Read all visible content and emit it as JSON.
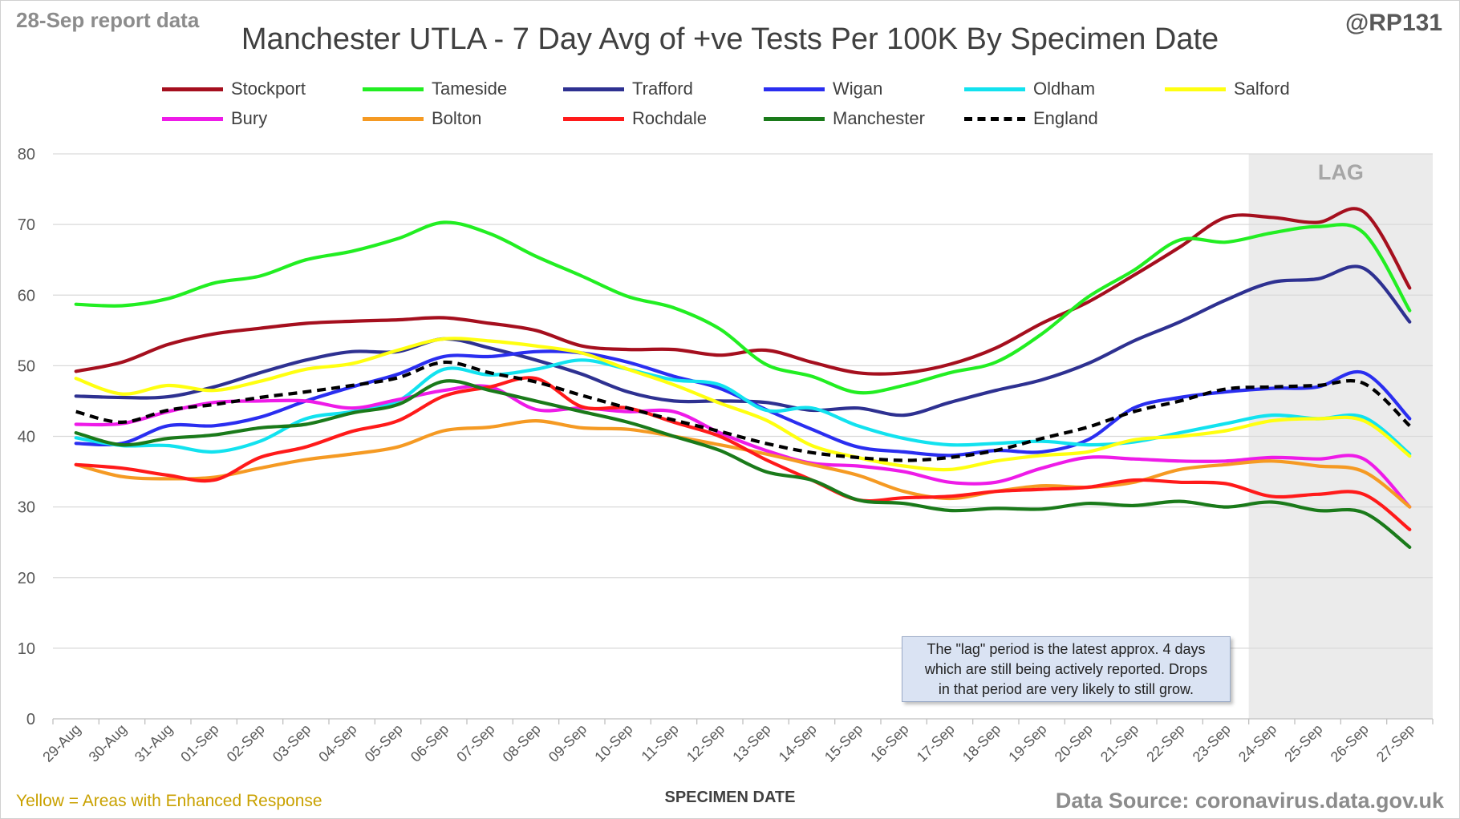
{
  "header": {
    "report_date": "28-Sep report data",
    "handle": "@RP131"
  },
  "footer": {
    "note": "Yellow = Areas with Enhanced Response",
    "source": "Data Source: coronavirus.data.gov.uk"
  },
  "annotation": {
    "lines": [
      "The \"lag\" period is the latest approx. 4 days",
      "which are still being actively reported.  Drops",
      "in that period are very likely to still grow."
    ]
  },
  "colors": {
    "lag_shade": "#ebebeb",
    "grid": "#d9d9d9",
    "axis_text": "#595959"
  },
  "chart_data": {
    "type": "line",
    "title": "Manchester UTLA - 7 Day Avg of +ve Tests Per 100K By Specimen Date",
    "xlabel": "SPECIMEN DATE",
    "ylabel": "",
    "ylim": [
      0,
      80
    ],
    "yticks": [
      0,
      10,
      20,
      30,
      40,
      50,
      60,
      70,
      80
    ],
    "grid": true,
    "legend_position": "top",
    "lag_region": {
      "label": "LAG",
      "start": "24-Sep",
      "end": "27-Sep"
    },
    "x": [
      "29-Aug",
      "30-Aug",
      "31-Aug",
      "01-Sep",
      "02-Sep",
      "03-Sep",
      "04-Sep",
      "05-Sep",
      "06-Sep",
      "07-Sep",
      "08-Sep",
      "09-Sep",
      "10-Sep",
      "11-Sep",
      "12-Sep",
      "13-Sep",
      "14-Sep",
      "15-Sep",
      "16-Sep",
      "17-Sep",
      "18-Sep",
      "19-Sep",
      "20-Sep",
      "21-Sep",
      "22-Sep",
      "23-Sep",
      "24-Sep",
      "25-Sep",
      "26-Sep",
      "27-Sep"
    ],
    "series": [
      {
        "name": "Stockport",
        "color": "#a50f1e",
        "dash": false,
        "values": [
          49.2,
          50.5,
          53.0,
          54.5,
          55.3,
          56.0,
          56.3,
          56.5,
          56.8,
          56.0,
          55.0,
          52.8,
          52.3,
          52.3,
          51.5,
          52.2,
          50.5,
          49.0,
          49.0,
          50.2,
          52.5,
          56.0,
          59.0,
          62.8,
          66.8,
          71.0,
          71.0,
          70.3,
          71.8,
          61.0
        ]
      },
      {
        "name": "Tameside",
        "color": "#22ee22",
        "dash": false,
        "values": [
          58.7,
          58.5,
          59.5,
          61.7,
          62.7,
          65.0,
          66.2,
          68.0,
          70.3,
          68.7,
          65.5,
          62.7,
          59.8,
          58.2,
          55.2,
          50.2,
          48.5,
          46.2,
          47.2,
          49.0,
          50.5,
          54.5,
          59.7,
          63.5,
          67.8,
          67.5,
          68.8,
          69.7,
          68.8,
          57.8
        ]
      },
      {
        "name": "Trafford",
        "color": "#2e3191",
        "dash": false,
        "values": [
          45.7,
          45.5,
          45.6,
          47.0,
          49.0,
          50.8,
          52.0,
          52.0,
          53.8,
          52.5,
          50.8,
          48.8,
          46.3,
          45.0,
          45.0,
          44.8,
          43.7,
          44.0,
          43.0,
          44.8,
          46.5,
          48.0,
          50.3,
          53.5,
          56.2,
          59.3,
          61.8,
          62.3,
          63.8,
          56.2
        ]
      },
      {
        "name": "Wigan",
        "color": "#2a2ef0",
        "dash": false,
        "values": [
          39.0,
          39.0,
          41.5,
          41.5,
          42.7,
          45.0,
          47.0,
          48.8,
          51.3,
          51.3,
          52.0,
          51.8,
          50.5,
          48.5,
          46.8,
          43.8,
          41.0,
          38.5,
          37.8,
          37.3,
          38.0,
          37.8,
          39.5,
          44.0,
          45.5,
          46.3,
          46.8,
          47.0,
          49.0,
          42.5
        ]
      },
      {
        "name": "Oldham",
        "color": "#12e2ef",
        "dash": false,
        "values": [
          39.8,
          38.7,
          38.7,
          37.8,
          39.3,
          42.5,
          43.5,
          45.0,
          49.5,
          48.7,
          49.5,
          50.8,
          49.5,
          48.0,
          47.3,
          43.7,
          44.0,
          41.5,
          39.7,
          38.8,
          39.0,
          39.3,
          38.8,
          39.2,
          40.5,
          41.8,
          43.0,
          42.5,
          42.7,
          37.5
        ]
      },
      {
        "name": "Salford",
        "color": "#ffff10",
        "dash": false,
        "values": [
          48.2,
          46.0,
          47.2,
          46.5,
          47.8,
          49.5,
          50.3,
          52.2,
          53.8,
          53.5,
          52.8,
          51.8,
          49.5,
          47.3,
          44.7,
          42.3,
          38.7,
          37.0,
          35.8,
          35.3,
          36.5,
          37.3,
          37.8,
          39.5,
          40.0,
          40.8,
          42.2,
          42.5,
          42.2,
          37.2
        ]
      },
      {
        "name": "Bury",
        "color": "#ee1be8",
        "dash": false,
        "values": [
          41.7,
          41.8,
          43.5,
          44.8,
          45.0,
          45.0,
          44.0,
          45.2,
          46.5,
          47.0,
          43.8,
          44.0,
          43.5,
          43.5,
          40.5,
          38.0,
          36.2,
          35.8,
          35.0,
          33.5,
          33.5,
          35.5,
          37.0,
          36.8,
          36.5,
          36.5,
          37.0,
          36.8,
          36.8,
          30.0
        ]
      },
      {
        "name": "Bolton",
        "color": "#f59a23",
        "dash": false,
        "values": [
          36.0,
          34.3,
          34.0,
          34.2,
          35.5,
          36.7,
          37.5,
          38.5,
          40.8,
          41.3,
          42.2,
          41.2,
          41.0,
          40.0,
          38.8,
          37.5,
          36.0,
          34.5,
          32.2,
          31.2,
          32.2,
          33.0,
          32.8,
          33.5,
          35.3,
          36.0,
          36.5,
          35.8,
          35.0,
          30.0
        ]
      },
      {
        "name": "Rochdale",
        "color": "#ff1a1a",
        "dash": false,
        "values": [
          36.0,
          35.5,
          34.5,
          33.8,
          37.0,
          38.5,
          40.7,
          42.2,
          45.7,
          47.0,
          48.2,
          44.2,
          44.0,
          42.0,
          40.0,
          36.7,
          33.8,
          31.0,
          31.3,
          31.5,
          32.2,
          32.5,
          32.8,
          33.8,
          33.5,
          33.3,
          31.5,
          31.8,
          31.8,
          26.8
        ]
      },
      {
        "name": "Manchester",
        "color": "#1a7a1a",
        "dash": false,
        "values": [
          40.5,
          38.8,
          39.7,
          40.2,
          41.2,
          41.7,
          43.3,
          44.5,
          47.8,
          46.5,
          45.0,
          43.5,
          42.0,
          40.0,
          38.0,
          35.0,
          33.8,
          31.0,
          30.5,
          29.5,
          29.8,
          29.7,
          30.5,
          30.2,
          30.8,
          30.0,
          30.7,
          29.5,
          29.2,
          24.3
        ]
      },
      {
        "name": "England",
        "color": "#000000",
        "dash": true,
        "values": [
          43.5,
          42.0,
          43.7,
          44.5,
          45.5,
          46.3,
          47.2,
          48.3,
          50.5,
          49.0,
          47.7,
          45.8,
          44.0,
          42.3,
          40.7,
          39.0,
          37.7,
          37.0,
          36.6,
          37.0,
          38.0,
          39.7,
          41.3,
          43.5,
          45.0,
          46.7,
          47.0,
          47.2,
          47.5,
          41.5
        ]
      }
    ]
  }
}
